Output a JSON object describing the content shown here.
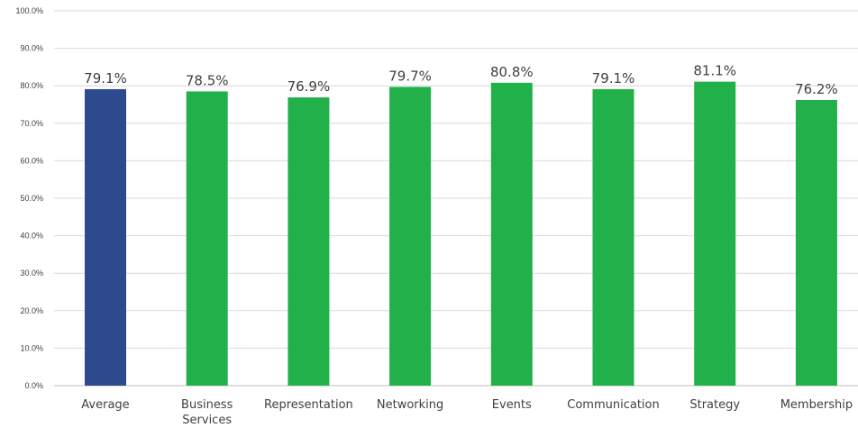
{
  "chart_data": {
    "type": "bar",
    "title": "",
    "xlabel": "",
    "ylabel": "",
    "ylim": [
      0,
      100
    ],
    "y_ticks": [
      "0.0%",
      "10.0%",
      "20.0%",
      "30.0%",
      "40.0%",
      "50.0%",
      "60.0%",
      "70.0%",
      "80.0%",
      "90.0%",
      "100.0%"
    ],
    "grid": true,
    "categories": [
      "Average",
      "Business Services",
      "Representation",
      "Networking",
      "Events",
      "Communication",
      "Strategy",
      "Membership"
    ],
    "values": [
      79.1,
      78.5,
      76.9,
      79.7,
      80.8,
      79.1,
      81.1,
      76.2
    ],
    "data_labels": [
      "79.1%",
      "78.5%",
      "76.9%",
      "79.7%",
      "80.8%",
      "79.1%",
      "81.1%",
      "76.2%"
    ],
    "colors": [
      "#2E4A8E",
      "#22B04A",
      "#22B04A",
      "#22B04A",
      "#22B04A",
      "#22B04A",
      "#22B04A",
      "#22B04A"
    ]
  }
}
